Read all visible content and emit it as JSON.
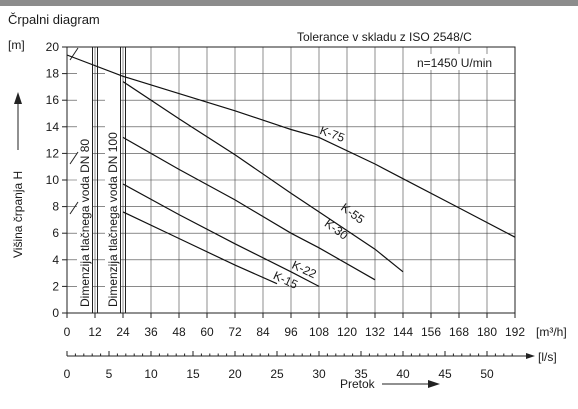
{
  "chart_data": {
    "type": "line",
    "title": "Črpalni diagram",
    "annotation_top": "Tolerance v skladu z ISO 2548/C",
    "speed_label": "n=1450 U/min",
    "ylabel": "Višina črpanja H",
    "yunit": "[m]",
    "ylim": [
      0,
      20
    ],
    "yticks": [
      0,
      2,
      4,
      6,
      8,
      10,
      12,
      14,
      16,
      18,
      20
    ],
    "x_axis_m3h": {
      "unit": "[m³/h]",
      "xlim": [
        0,
        192
      ],
      "ticks": [
        0,
        12,
        24,
        36,
        48,
        60,
        72,
        84,
        96,
        108,
        120,
        132,
        144,
        156,
        168,
        180,
        192
      ]
    },
    "x_axis_ls": {
      "unit": "[l/s]",
      "ticks": [
        0,
        5,
        10,
        15,
        20,
        25,
        30,
        35,
        40,
        45,
        50
      ]
    },
    "xlabel": "Pretok",
    "grid": true,
    "series": [
      {
        "name": "K-75",
        "points": [
          [
            0,
            19.4
          ],
          [
            24,
            17.8
          ],
          [
            48,
            16.5
          ],
          [
            72,
            15.2
          ],
          [
            96,
            13.8
          ],
          [
            108,
            13.2
          ],
          [
            132,
            11.2
          ],
          [
            144,
            10.1
          ],
          [
            168,
            7.9
          ],
          [
            192,
            5.7
          ]
        ]
      },
      {
        "name": "K-55",
        "points": [
          [
            24,
            17.4
          ],
          [
            48,
            14.6
          ],
          [
            72,
            11.9
          ],
          [
            96,
            9.0
          ],
          [
            108,
            7.6
          ],
          [
            132,
            4.8
          ],
          [
            144,
            3.1
          ]
        ]
      },
      {
        "name": "K-30",
        "points": [
          [
            24,
            13.2
          ],
          [
            48,
            10.8
          ],
          [
            72,
            8.5
          ],
          [
            96,
            6.0
          ],
          [
            108,
            4.9
          ],
          [
            132,
            2.5
          ]
        ]
      },
      {
        "name": "K-22",
        "points": [
          [
            24,
            9.7
          ],
          [
            48,
            7.4
          ],
          [
            72,
            5.2
          ],
          [
            96,
            3.1
          ],
          [
            108,
            2.0
          ]
        ]
      },
      {
        "name": "K-15",
        "points": [
          [
            24,
            7.6
          ],
          [
            48,
            5.6
          ],
          [
            72,
            3.6
          ],
          [
            90,
            2.2
          ]
        ]
      }
    ],
    "dn_lines": [
      {
        "label": "Dimenzija tlačnega voda DN 80"
      },
      {
        "label": "Dimenzija tlačnega voda DN 100"
      }
    ]
  }
}
